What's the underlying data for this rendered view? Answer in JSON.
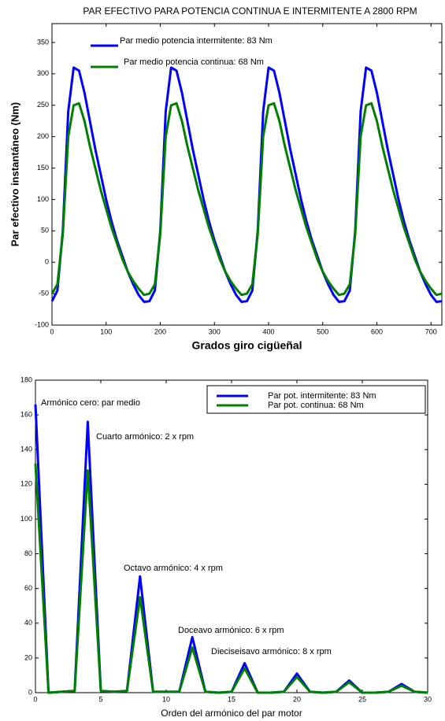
{
  "chart_data": [
    {
      "type": "line",
      "title": "PAR EFECTIVO PARA POTENCIA CONTINUA E INTERMITENTE A 2800 RPM",
      "x_label": "Grados giro cigüeñal",
      "y_label": "Par efectivo instantáneo (Nm)",
      "xlim": [
        0,
        720
      ],
      "ylim": [
        -100,
        380
      ],
      "xticks": [
        0,
        100,
        200,
        300,
        400,
        500,
        600,
        700
      ],
      "yticks": [
        -100,
        -50,
        0,
        50,
        100,
        150,
        200,
        250,
        300,
        350
      ],
      "grid": false,
      "x": [
        0,
        10,
        20,
        30,
        40,
        50,
        60,
        70,
        80,
        90,
        100,
        110,
        120,
        130,
        140,
        150,
        160,
        170,
        180,
        190,
        200,
        210,
        220,
        230,
        240,
        250,
        260,
        270,
        280,
        290,
        300,
        310,
        320,
        330,
        340,
        350,
        360,
        370,
        380,
        390,
        400,
        410,
        420,
        430,
        440,
        450,
        460,
        470,
        480,
        490,
        500,
        510,
        520,
        530,
        540,
        550,
        560,
        570,
        580,
        590,
        600,
        610,
        620,
        630,
        640,
        650,
        660,
        670,
        680,
        690,
        700,
        710,
        720
      ],
      "series": [
        {
          "name": "Par medio potencia intermitente: 83 Nm",
          "color": "#0000ff",
          "values": [
            -62,
            -45,
            50,
            240,
            310,
            305,
            270,
            225,
            180,
            140,
            100,
            65,
            35,
            10,
            -15,
            -35,
            -52,
            -63,
            -62,
            -45,
            50,
            240,
            310,
            305,
            270,
            225,
            180,
            140,
            100,
            65,
            35,
            10,
            -15,
            -35,
            -52,
            -63,
            -62,
            -45,
            50,
            240,
            310,
            305,
            270,
            225,
            180,
            140,
            100,
            65,
            35,
            10,
            -15,
            -35,
            -52,
            -63,
            -62,
            -45,
            50,
            240,
            310,
            305,
            270,
            225,
            180,
            140,
            100,
            65,
            35,
            10,
            -15,
            -35,
            -52,
            -63,
            -62
          ]
        },
        {
          "name": "Par medio potencia continua: 68 Nm",
          "color": "#008000",
          "values": [
            -50,
            -35,
            45,
            200,
            250,
            253,
            225,
            185,
            150,
            115,
            85,
            55,
            30,
            5,
            -15,
            -30,
            -42,
            -52,
            -50,
            -35,
            45,
            200,
            250,
            253,
            225,
            185,
            150,
            115,
            85,
            55,
            30,
            5,
            -15,
            -30,
            -42,
            -52,
            -50,
            -35,
            45,
            200,
            250,
            253,
            225,
            185,
            150,
            115,
            85,
            55,
            30,
            5,
            -15,
            -30,
            -42,
            -52,
            -50,
            -35,
            45,
            200,
            250,
            253,
            225,
            185,
            150,
            115,
            85,
            55,
            30,
            5,
            -15,
            -30,
            -42,
            -52,
            -50
          ]
        }
      ]
    },
    {
      "type": "line",
      "x_label": "Orden del armónico del par motor",
      "xlim": [
        0,
        30
      ],
      "ylim": [
        0,
        180
      ],
      "xticks": [
        0,
        5,
        10,
        15,
        20,
        25,
        30
      ],
      "yticks": [
        0,
        20,
        40,
        60,
        80,
        100,
        120,
        140,
        160,
        180
      ],
      "grid": false,
      "annotations": [
        "Armónico cero: par medio",
        "Cuarto armónico: 2 x rpm",
        "Octavo armónico: 4 x rpm",
        "Doceavo armónico: 6 x rpm",
        "Dieciseisavo armónico: 8 x rpm"
      ],
      "x": [
        0,
        1,
        2,
        3,
        4,
        5,
        6,
        7,
        8,
        9,
        10,
        11,
        12,
        13,
        14,
        15,
        16,
        17,
        18,
        19,
        20,
        21,
        22,
        23,
        24,
        25,
        26,
        27,
        28,
        29,
        30
      ],
      "series": [
        {
          "name": "Par pot. intermitente: 83 Nm",
          "color": "#0000ff",
          "values": [
            166,
            0,
            0.5,
            1,
            156,
            1,
            0.5,
            1,
            67,
            0.5,
            0.5,
            0.5,
            32,
            0.5,
            0,
            0.5,
            17,
            0,
            0,
            0.5,
            11,
            0.5,
            0,
            0.5,
            7,
            0,
            0,
            0.5,
            5,
            0.5,
            0
          ]
        },
        {
          "name": "Par pot. continua: 68 Nm",
          "color": "#008000",
          "values": [
            132,
            0,
            0.5,
            1,
            128,
            1,
            0.5,
            1,
            55,
            0.5,
            0.5,
            0.5,
            26,
            0.5,
            0,
            0.5,
            14,
            0,
            0,
            0.5,
            9,
            0.5,
            0,
            0.5,
            6,
            0,
            0,
            0.5,
            4,
            0.5,
            0
          ]
        }
      ]
    }
  ]
}
